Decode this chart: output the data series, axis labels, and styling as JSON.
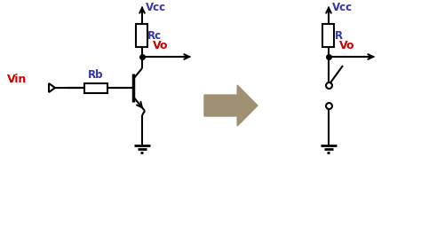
{
  "bg_color": "#ffffff",
  "line_color": "#000000",
  "label_color_red": "#cc0000",
  "label_color_blue": "#3333aa",
  "arrow_color": "#9e9070",
  "fig_width": 4.74,
  "fig_height": 2.74,
  "dpi": 100,
  "labels": {
    "vcc1": "Vcc",
    "rc": "Rc",
    "vo1": "Vo",
    "vin": "Vin",
    "rb": "Rb",
    "vcc2": "Vcc",
    "r": "R",
    "vo2": "Vo"
  }
}
